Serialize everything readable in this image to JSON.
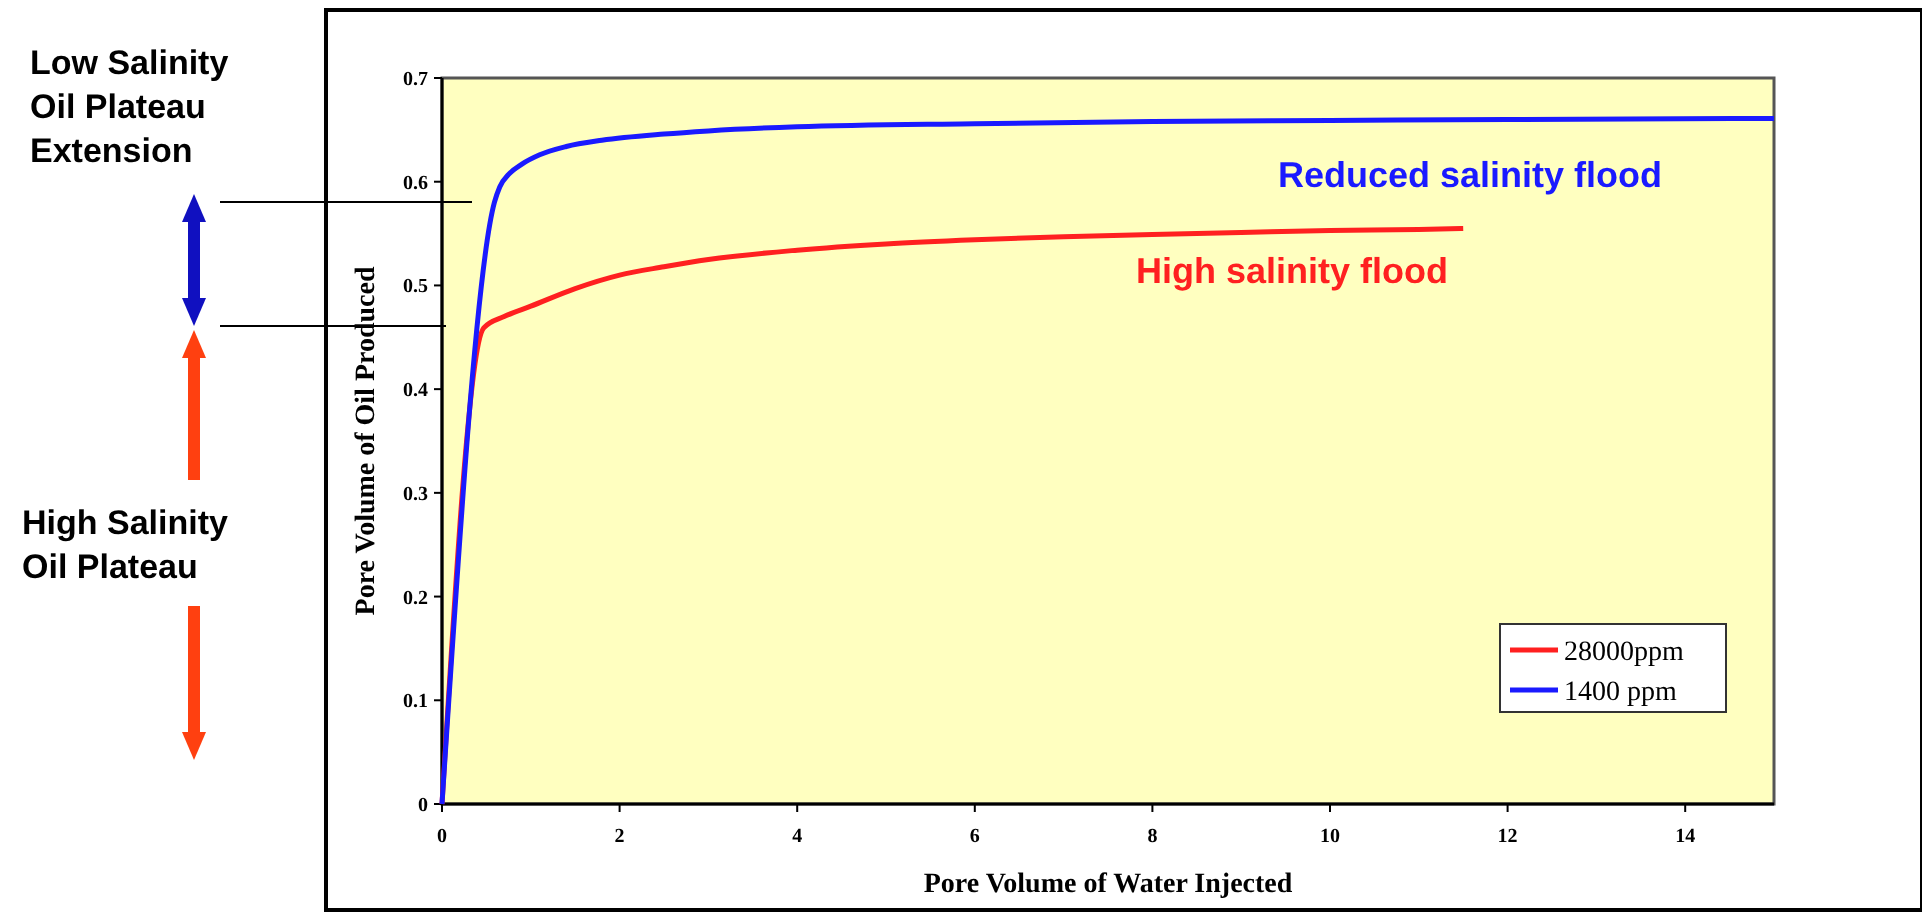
{
  "chart_data": {
    "type": "line",
    "xlabel": "Pore Volume of Water Injected",
    "ylabel": "Pore Volume of Oil Produced",
    "xlim": [
      0,
      15
    ],
    "ylim": [
      0,
      0.7
    ],
    "xticks": [
      0,
      2,
      4,
      6,
      8,
      10,
      12,
      14
    ],
    "yticks": [
      0,
      0.1,
      0.2,
      0.3,
      0.4,
      0.5,
      0.6,
      0.7
    ],
    "grid": false,
    "legend": "bottom right",
    "line_style": "solid",
    "marker": "none",
    "series": [
      {
        "name": "28000ppm",
        "color": "#ff2020",
        "x": [
          0,
          0.47,
          0.7,
          1,
          1.5,
          2,
          2.5,
          3,
          4,
          5,
          6,
          7,
          8,
          9,
          10,
          11,
          11.5
        ],
        "values": [
          0,
          0.459,
          0.47,
          0.48,
          0.497,
          0.51,
          0.518,
          0.525,
          0.534,
          0.54,
          0.544,
          0.547,
          0.549,
          0.551,
          0.553,
          0.554,
          0.555
        ]
      },
      {
        "name": "1400 ppm",
        "color": "#1a1aff",
        "x": [
          0,
          0.59,
          0.65,
          0.75,
          0.9,
          1.1,
          1.4,
          1.8,
          2.5,
          3,
          4,
          6,
          8,
          10,
          12,
          15
        ],
        "values": [
          0,
          0.58,
          0.595,
          0.607,
          0.617,
          0.626,
          0.634,
          0.64,
          0.646,
          0.649,
          0.653,
          0.656,
          0.658,
          0.659,
          0.66,
          0.661
        ]
      }
    ],
    "annotations": [
      "Reduced salinity flood",
      "High salinity flood",
      "Low Salinity\nOil Plateau\nExtension",
      "High Salinity\nOil Plateau"
    ]
  }
}
